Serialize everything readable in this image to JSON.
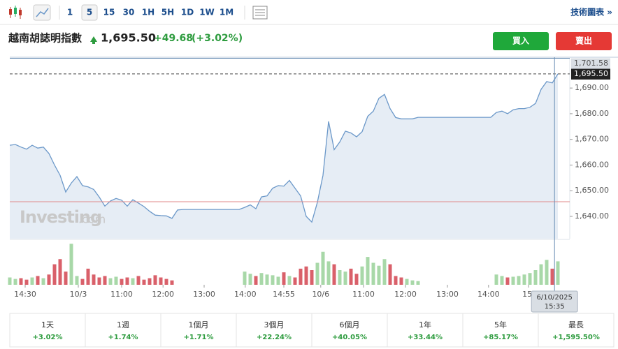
{
  "toolbar": {
    "periods": [
      "1",
      "5",
      "15",
      "30",
      "1H",
      "5H",
      "1D",
      "1W",
      "1M"
    ],
    "active": "5",
    "link": "技術圖表 »"
  },
  "header": {
    "name": "越南胡誌明指數",
    "price": "1,695.50",
    "change": "+49.68",
    "change_pct": "(+3.02%)",
    "buy": "買入",
    "sell": "賣出"
  },
  "chart_data": {
    "type": "area",
    "color": "#6b98c9",
    "fill": "#e6edf5",
    "xlim": [
      0,
      98
    ],
    "ylim": [
      1631.3,
      1702
    ],
    "yticks": [
      {
        "value": 1640,
        "label": "1,640.00"
      },
      {
        "value": 1650,
        "label": "1,650.00"
      },
      {
        "value": 1660,
        "label": "1,660.00"
      },
      {
        "value": 1670,
        "label": "1,670.00"
      },
      {
        "value": 1680,
        "label": "1,680.00"
      },
      {
        "value": 1690,
        "label": "1,690.00"
      }
    ],
    "xticks": [
      {
        "value": 2.75,
        "label": "14:30"
      },
      {
        "value": 12.25,
        "label": "10/3"
      },
      {
        "value": 20,
        "label": "11:00"
      },
      {
        "value": 27.4,
        "label": "12:00"
      },
      {
        "value": 34.75,
        "label": "13:00"
      },
      {
        "value": 42.1,
        "label": "14:00"
      },
      {
        "value": 49,
        "label": "14:55"
      },
      {
        "value": 55.6,
        "label": "10/6"
      },
      {
        "value": 63.25,
        "label": "11:00"
      },
      {
        "value": 70.75,
        "label": "12:00"
      },
      {
        "value": 78.25,
        "label": "13:00"
      },
      {
        "value": 85.6,
        "label": "14:00"
      },
      {
        "value": 92.75,
        "label": "15:"
      }
    ],
    "values": [
      1667.7,
      1668.0,
      1667.0,
      1666.2,
      1667.7,
      1666.6,
      1667.0,
      1664.5,
      1660,
      1656,
      1649.5,
      1653,
      1655.5,
      1652,
      1651.5,
      1650.5,
      1647.5,
      1644,
      1646,
      1647,
      1646.3,
      1644,
      1646.5,
      1645.2,
      1643.8,
      1642,
      1640.5,
      1640.3,
      1640.2,
      1639.2,
      1642.5,
      1642.7,
      1642.7,
      1642.7,
      1642.7,
      1642.7,
      1642.7,
      1642.7,
      1642.7,
      1642.7,
      1642.7,
      1642.7,
      1643.5,
      1644.5,
      1643,
      1647.6,
      1648,
      1651,
      1652,
      1651.8,
      1654,
      1651,
      1648,
      1640,
      1637.8,
      1645.5,
      1656,
      1677,
      1666,
      1669,
      1673.2,
      1672.5,
      1671,
      1673,
      1679,
      1681,
      1686,
      1687.5,
      1682,
      1678.5,
      1678,
      1678,
      1678,
      1678.6,
      1678.6,
      1678.6,
      1678.6,
      1678.6,
      1678.6,
      1678.6,
      1678.6,
      1678.6,
      1678.6,
      1678.6,
      1678.6,
      1678.6,
      1678.6,
      1680.5,
      1681,
      1680,
      1681.5,
      1682,
      1682,
      1682.5,
      1684,
      1689.5,
      1692.5,
      1692,
      1695.5
    ],
    "volume_lim": [
      0,
      60
    ],
    "volume": [
      10,
      8,
      9,
      7,
      10,
      12,
      9,
      14,
      28,
      35,
      18,
      56,
      12,
      8,
      22,
      14,
      10,
      12,
      9,
      11,
      8,
      10,
      9,
      12,
      7,
      9,
      13,
      10,
      8,
      6,
      0,
      0,
      0,
      0,
      0,
      0,
      0,
      0,
      0,
      0,
      0,
      0,
      18,
      15,
      12,
      16,
      14,
      13,
      11,
      17,
      12,
      10,
      22,
      25,
      20,
      30,
      45,
      32,
      28,
      20,
      18,
      22,
      15,
      25,
      38,
      30,
      26,
      35,
      28,
      12,
      10,
      8,
      6,
      5,
      0,
      0,
      0,
      0,
      0,
      0,
      0,
      0,
      0,
      0,
      0,
      0,
      0,
      14,
      12,
      10,
      11,
      12,
      14,
      16,
      20,
      28,
      34,
      22,
      32
    ],
    "up_color": "#a8d8a8",
    "down_color": "#d9606a",
    "reference_line": 1645.7,
    "last": {
      "value": 1695.5,
      "label": "1,695.50"
    },
    "crosshair": {
      "index": 97.4,
      "value": 1701.58,
      "label": "1,701.58",
      "date": "6/10/2025",
      "time": "15:35"
    },
    "watermark": "Investing",
    "watermark_suffix": ".com"
  },
  "performance": {
    "labels": [
      "1天",
      "1週",
      "1個月",
      "3個月",
      "6個月",
      "1年",
      "5年",
      "最長"
    ],
    "values": [
      "+3.02%",
      "+1.74%",
      "+1.71%",
      "+22.24%",
      "+40.05%",
      "+33.44%",
      "+85.17%",
      "+1,595.50%"
    ]
  }
}
